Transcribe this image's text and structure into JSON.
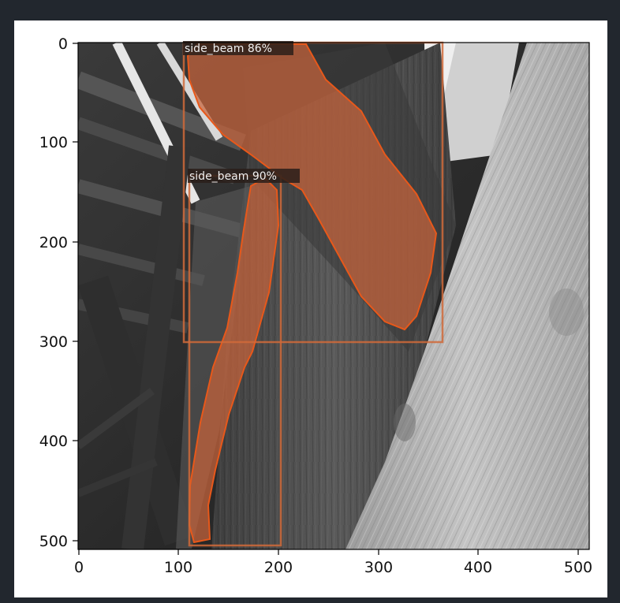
{
  "image": {
    "description_colors": {
      "background": "#22272e",
      "figure_bg": "#ffffff",
      "mask_fill": "#c8643c",
      "mask_stroke": "#e8581a",
      "box_stroke": "#d06a3a",
      "label_bg": "#2a1e1a"
    },
    "x_ticks": [
      "0",
      "100",
      "200",
      "300",
      "400",
      "500"
    ],
    "y_ticks": [
      "0",
      "100",
      "200",
      "300",
      "400",
      "500"
    ],
    "detections": [
      {
        "label": "side_beam 86%",
        "class": "side_beam",
        "score": "86%"
      },
      {
        "label": "side_beam 90%",
        "class": "side_beam",
        "score": "90%"
      }
    ]
  }
}
